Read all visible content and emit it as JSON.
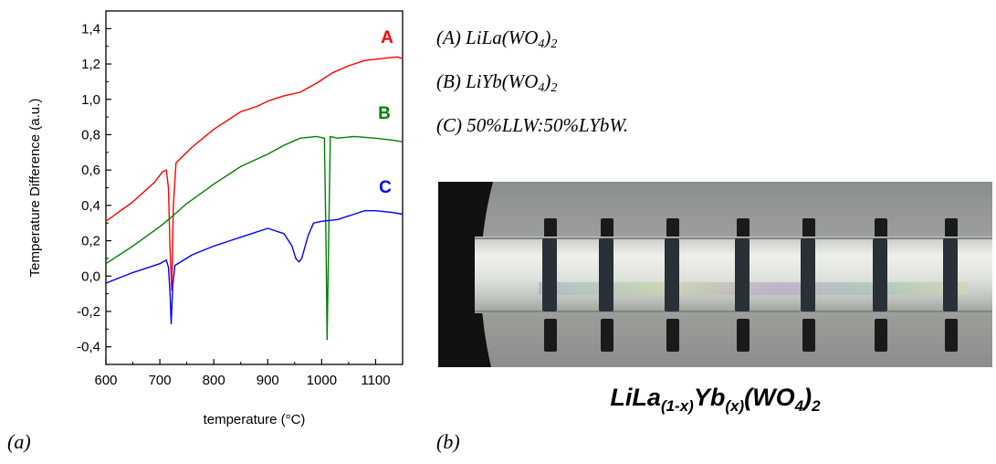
{
  "chart_data": {
    "type": "line",
    "title": "",
    "xlabel": "temperature (°C)",
    "ylabel": "Temperature Difference (a.u.)",
    "xlim": [
      600,
      1150
    ],
    "ylim": [
      -0.5,
      1.5
    ],
    "x_ticks": [
      "600",
      "700",
      "800",
      "900",
      "1000",
      "1100"
    ],
    "y_ticks": [
      "-0,4",
      "-0,2",
      "0,0",
      "0,2",
      "0,4",
      "0,6",
      "0,8",
      "1,0",
      "1,2",
      "1,4"
    ],
    "grid": false,
    "series": [
      {
        "name": "A",
        "color": "#ff0000",
        "x": [
          600,
          650,
          690,
          705,
          712,
          716,
          719,
          722,
          725,
          730,
          760,
          800,
          850,
          880,
          900,
          930,
          960,
          990,
          1005,
          1020,
          1050,
          1080,
          1110,
          1140,
          1150
        ],
        "y": [
          0.31,
          0.42,
          0.53,
          0.59,
          0.6,
          0.5,
          0.15,
          -0.08,
          0.4,
          0.64,
          0.73,
          0.83,
          0.93,
          0.96,
          0.99,
          1.02,
          1.04,
          1.09,
          1.12,
          1.15,
          1.19,
          1.22,
          1.23,
          1.24,
          1.23
        ]
      },
      {
        "name": "B",
        "color": "#008000",
        "x": [
          600,
          650,
          700,
          720,
          750,
          800,
          850,
          900,
          930,
          960,
          990,
          1005,
          1008,
          1010,
          1013,
          1016,
          1030,
          1060,
          1100,
          1130,
          1150
        ],
        "y": [
          0.07,
          0.17,
          0.28,
          0.33,
          0.41,
          0.52,
          0.62,
          0.69,
          0.74,
          0.78,
          0.79,
          0.78,
          0.2,
          -0.36,
          0.2,
          0.79,
          0.78,
          0.79,
          0.78,
          0.77,
          0.76
        ]
      },
      {
        "name": "C",
        "color": "#0000ff",
        "x": [
          600,
          650,
          700,
          712,
          716,
          719,
          721,
          724,
          728,
          760,
          800,
          850,
          900,
          930,
          945,
          952,
          958,
          963,
          975,
          985,
          1000,
          1030,
          1060,
          1080,
          1100,
          1130,
          1150
        ],
        "y": [
          -0.04,
          0.02,
          0.07,
          0.09,
          0.05,
          -0.1,
          -0.27,
          -0.05,
          0.06,
          0.12,
          0.17,
          0.22,
          0.27,
          0.24,
          0.17,
          0.1,
          0.08,
          0.1,
          0.23,
          0.3,
          0.31,
          0.32,
          0.35,
          0.37,
          0.37,
          0.36,
          0.35
        ]
      }
    ]
  },
  "legend_lines": [
    "(A) LiLa(WO4)2",
    "(B) LiYb(WO4)2",
    "(C) 50%LLW:50%LYbW."
  ],
  "panel_labels": {
    "a": "(a)",
    "b": "(b)"
  },
  "crystal_caption": "LiLa(1-x)Yb(x)(WO4)2"
}
